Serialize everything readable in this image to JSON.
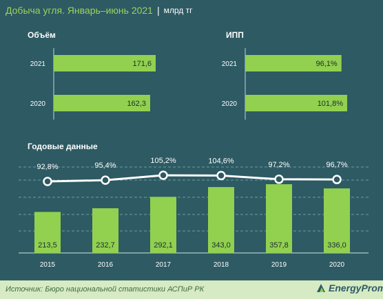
{
  "header": {
    "title": "Добыча угля. Январь–июнь 2021",
    "separator": "|",
    "unit": "млрд тг"
  },
  "colors": {
    "background": "#2d5a63",
    "bar": "#92d050",
    "title": "#9fd15a",
    "footer": "#d6eac4"
  },
  "chart_data": [
    {
      "type": "bar",
      "orientation": "horizontal",
      "title": "Объём",
      "categories": [
        "2021",
        "2020"
      ],
      "values": [
        171.6,
        162.3
      ],
      "labels": [
        "171,6",
        "162,3"
      ]
    },
    {
      "type": "bar",
      "orientation": "horizontal",
      "title": "ИПП",
      "categories": [
        "2021",
        "2020"
      ],
      "values": [
        96.1,
        101.8
      ],
      "labels": [
        "96,1%",
        "101,8%"
      ]
    },
    {
      "type": "bar",
      "title": "Годовые данные",
      "categories": [
        "2015",
        "2016",
        "2017",
        "2018",
        "2019",
        "2020"
      ],
      "series": [
        {
          "type": "bar",
          "values": [
            213.5,
            232.7,
            292.1,
            343.0,
            357.8,
            336.0
          ],
          "labels": [
            "213,5",
            "232,7",
            "292,1",
            "343,0",
            "357,8",
            "336,0"
          ]
        },
        {
          "type": "line",
          "values": [
            92.8,
            95.4,
            105.2,
            104.6,
            97.2,
            96.7
          ],
          "labels": [
            "92,8%",
            "95,4%",
            "105,2%",
            "104,6%",
            "97,2%",
            "96,7%"
          ]
        }
      ],
      "grid": true
    }
  ],
  "footer": {
    "source": "Источник: Бюро национальной статистики АСПиР РК",
    "logo_text": "EnergyProm"
  }
}
